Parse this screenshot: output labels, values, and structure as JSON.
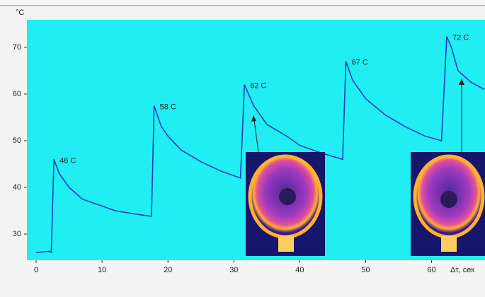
{
  "chart_data": {
    "type": "line",
    "y_label": "°C",
    "x_label": "Δτ, сек",
    "x": [
      0,
      1,
      2,
      2.3,
      2.7,
      3.5,
      5,
      7,
      10,
      12,
      15,
      17.5,
      17.9,
      19,
      20,
      22,
      25,
      28,
      31,
      31.6,
      33,
      35,
      38,
      40,
      43,
      46.5,
      47,
      48,
      50,
      53,
      56,
      59,
      61.5,
      62.3,
      63,
      64,
      66,
      68
    ],
    "series": [
      {
        "color": "#1f3fb8",
        "values": [
          26,
          26.2,
          26.3,
          26.1,
          46,
          43,
          40,
          37.5,
          36,
          35,
          34.3,
          33.8,
          57.5,
          53,
          51,
          48,
          45.5,
          43.5,
          42,
          62,
          57.5,
          53.5,
          51,
          49,
          47.5,
          46,
          67,
          63,
          59,
          55.5,
          53,
          51,
          50,
          72.3,
          70,
          65,
          62.5,
          61
        ]
      }
    ],
    "annotations": [
      "46 C",
      "58 C",
      "62 C",
      "67 C",
      "72 C"
    ],
    "xlim": [
      -1.4,
      68.1
    ],
    "ylim": [
      24.4,
      75.9
    ],
    "xticks": [
      0,
      10,
      20,
      30,
      40,
      50,
      60
    ],
    "yticks": [
      30,
      40,
      50,
      60,
      70
    ]
  }
}
